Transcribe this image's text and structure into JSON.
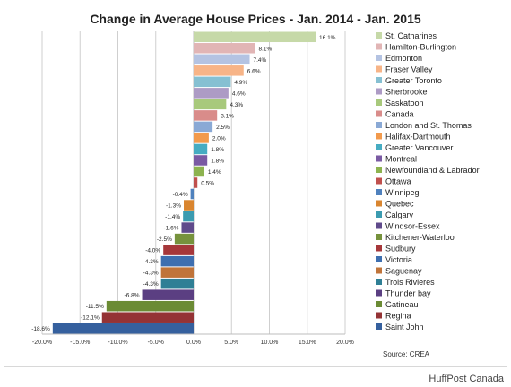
{
  "credit": "HuffPost Canada",
  "source": "Source: CREA",
  "chart_data": {
    "type": "bar",
    "orientation": "horizontal",
    "title": "Change in Average House Prices - Jan. 2014 - Jan. 2015",
    "xlim": [
      -20,
      20
    ],
    "xticks": [
      -20,
      -15,
      -10,
      -5,
      0,
      5,
      10,
      15,
      20
    ],
    "xtick_labels": [
      "-20.0%",
      "-15.0%",
      "-10.0%",
      "-5.0%",
      "0.0%",
      "5.0%",
      "10.0%",
      "15.0%",
      "20.0%"
    ],
    "grid": "vertical",
    "legend_placement": "right",
    "categories": [
      "St. Catharines",
      "Hamilton-Burlington",
      "Edmonton",
      "Fraser Valley",
      "Greater Toronto",
      "Sherbrooke",
      "Saskatoon",
      "Canada",
      "London and St. Thomas",
      "Halifax-Dartmouth",
      "Greater Vancouver",
      "Montreal",
      "Newfoundland & Labrador",
      "Ottawa",
      "Winnipeg",
      "Quebec",
      "Calgary",
      "Windsor-Essex",
      "Kitchener-Waterloo",
      "Sudbury",
      "Victoria",
      "Saguenay",
      "Trois Rivieres",
      "Thunder bay",
      "Gatineau",
      "Regina",
      "Saint John"
    ],
    "values": [
      16.1,
      8.1,
      7.4,
      6.6,
      4.9,
      4.6,
      4.3,
      3.1,
      2.5,
      2.0,
      1.8,
      1.8,
      1.4,
      0.5,
      -0.4,
      -1.3,
      -1.4,
      -1.6,
      -2.5,
      -4.0,
      -4.3,
      -4.3,
      -4.3,
      -6.8,
      -11.5,
      -12.1,
      -18.6
    ],
    "value_labels": [
      "16.1%",
      "8.1%",
      "7.4%",
      "6.6%",
      "4.9%",
      "4.6%",
      "4.3%",
      "3.1%",
      "2.5%",
      "2.0%",
      "1.8%",
      "1.8%",
      "1.4%",
      "0.5%",
      "-0.4%",
      "-1.3%",
      "-1.4%",
      "-1.6%",
      "-2.5%",
      "-4.0%",
      "-4.3%",
      "-4.3%",
      "-4.3%",
      "-6.8%",
      "-11.5%",
      "-12.1%",
      "-18.6%"
    ],
    "colors": [
      "#c6d9a8",
      "#e1b5b5",
      "#b4c3e2",
      "#f7b487",
      "#86c0d2",
      "#ad9bc5",
      "#a8c97c",
      "#d98c8a",
      "#8aa9d5",
      "#f29a4c",
      "#46acc2",
      "#7a5aa3",
      "#8db34f",
      "#c0504d",
      "#4f81bd",
      "#d9852f",
      "#3b9bb0",
      "#5f4a8b",
      "#76923c",
      "#a6373a",
      "#3e6fb0",
      "#c0743a",
      "#2f7f95",
      "#5b3f82",
      "#6b8b34",
      "#943335",
      "#35609e"
    ]
  }
}
